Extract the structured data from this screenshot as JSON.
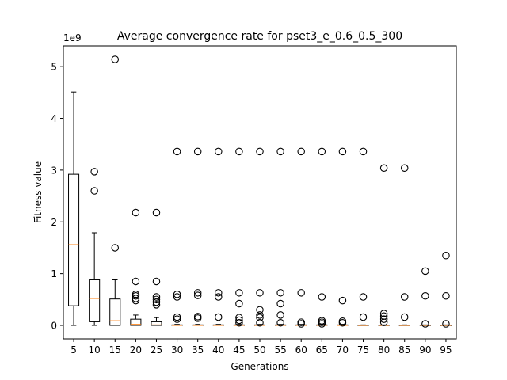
{
  "chart_data": {
    "type": "boxplot",
    "title": "Average convergence rate for pset3_e_0.6_0.5_300",
    "xlabel": "Generations",
    "ylabel": "Fitness value",
    "y_offset_label": "1e9",
    "y_scale": 1000000000,
    "ylim": [
      -0.26,
      5.4
    ],
    "yticks": [
      0,
      1,
      2,
      3,
      4,
      5
    ],
    "grid": false,
    "colors": {
      "box": "#000000",
      "median": "#ff7f0e",
      "frame": "#000000"
    },
    "categories": [
      "5",
      "10",
      "15",
      "20",
      "25",
      "30",
      "35",
      "40",
      "45",
      "50",
      "55",
      "60",
      "65",
      "70",
      "75",
      "80",
      "85",
      "90",
      "95"
    ],
    "boxes": [
      {
        "x": "5",
        "whislo": 0.0,
        "q1": 0.38,
        "med": 1.56,
        "q3": 2.92,
        "whishi": 4.51,
        "fliers": []
      },
      {
        "x": "10",
        "whislo": 0.0,
        "q1": 0.07,
        "med": 0.52,
        "q3": 0.88,
        "whishi": 1.79,
        "fliers": [
          2.6,
          2.97
        ]
      },
      {
        "x": "15",
        "whislo": 0.0,
        "q1": 0.0,
        "med": 0.09,
        "q3": 0.51,
        "whishi": 0.88,
        "fliers": [
          1.5,
          5.14
        ]
      },
      {
        "x": "20",
        "whislo": 0.0,
        "q1": 0.0,
        "med": 0.02,
        "q3": 0.12,
        "whishi": 0.2,
        "fliers": [
          0.48,
          0.52,
          0.57,
          0.6,
          0.85,
          2.18
        ]
      },
      {
        "x": "25",
        "whislo": 0.0,
        "q1": 0.0,
        "med": 0.01,
        "q3": 0.07,
        "whishi": 0.15,
        "fliers": [
          0.4,
          0.45,
          0.5,
          0.55,
          0.85,
          2.18
        ]
      },
      {
        "x": "30",
        "whislo": 0.0,
        "q1": 0.0,
        "med": 0.0,
        "q3": 0.01,
        "whishi": 0.02,
        "fliers": [
          0.12,
          0.16,
          0.55,
          0.6,
          3.36
        ]
      },
      {
        "x": "35",
        "whislo": 0.0,
        "q1": 0.0,
        "med": 0.0,
        "q3": 0.01,
        "whishi": 0.02,
        "fliers": [
          0.14,
          0.17,
          0.58,
          0.63,
          3.36
        ]
      },
      {
        "x": "40",
        "whislo": 0.0,
        "q1": 0.0,
        "med": 0.0,
        "q3": 0.01,
        "whishi": 0.02,
        "fliers": [
          0.16,
          0.55,
          0.63,
          3.36
        ]
      },
      {
        "x": "45",
        "whislo": 0.0,
        "q1": 0.0,
        "med": 0.0,
        "q3": 0.01,
        "whishi": 0.02,
        "fliers": [
          0.05,
          0.1,
          0.15,
          0.42,
          0.63,
          3.36
        ]
      },
      {
        "x": "50",
        "whislo": 0.0,
        "q1": 0.0,
        "med": 0.0,
        "q3": 0.01,
        "whishi": 0.02,
        "fliers": [
          0.05,
          0.15,
          0.2,
          0.3,
          0.63,
          3.36
        ]
      },
      {
        "x": "55",
        "whislo": 0.0,
        "q1": 0.0,
        "med": 0.0,
        "q3": 0.01,
        "whishi": 0.02,
        "fliers": [
          0.05,
          0.2,
          0.42,
          0.63,
          3.36
        ]
      },
      {
        "x": "60",
        "whislo": 0.0,
        "q1": 0.0,
        "med": 0.0,
        "q3": 0.01,
        "whishi": 0.02,
        "fliers": [
          0.03,
          0.06,
          0.63,
          3.36
        ]
      },
      {
        "x": "65",
        "whislo": 0.0,
        "q1": 0.0,
        "med": 0.0,
        "q3": 0.01,
        "whishi": 0.02,
        "fliers": [
          0.03,
          0.06,
          0.09,
          0.55,
          3.36
        ]
      },
      {
        "x": "70",
        "whislo": 0.0,
        "q1": 0.0,
        "med": 0.0,
        "q3": 0.01,
        "whishi": 0.02,
        "fliers": [
          0.05,
          0.08,
          0.48,
          3.36
        ]
      },
      {
        "x": "75",
        "whislo": 0.0,
        "q1": 0.0,
        "med": 0.0,
        "q3": 0.005,
        "whishi": 0.01,
        "fliers": [
          0.16,
          0.55,
          3.36
        ]
      },
      {
        "x": "80",
        "whislo": 0.0,
        "q1": 0.0,
        "med": 0.0,
        "q3": 0.005,
        "whishi": 0.01,
        "fliers": [
          0.06,
          0.12,
          0.18,
          0.23,
          3.04
        ]
      },
      {
        "x": "85",
        "whislo": 0.0,
        "q1": 0.0,
        "med": 0.0,
        "q3": 0.005,
        "whishi": 0.01,
        "fliers": [
          0.16,
          0.55,
          3.04
        ]
      },
      {
        "x": "90",
        "whislo": 0.0,
        "q1": 0.0,
        "med": 0.0,
        "q3": 0.005,
        "whishi": 0.01,
        "fliers": [
          0.03,
          0.57,
          1.05
        ]
      },
      {
        "x": "95",
        "whislo": 0.0,
        "q1": 0.0,
        "med": 0.0,
        "q3": 0.005,
        "whishi": 0.01,
        "fliers": [
          0.03,
          0.57,
          1.35
        ]
      }
    ]
  }
}
